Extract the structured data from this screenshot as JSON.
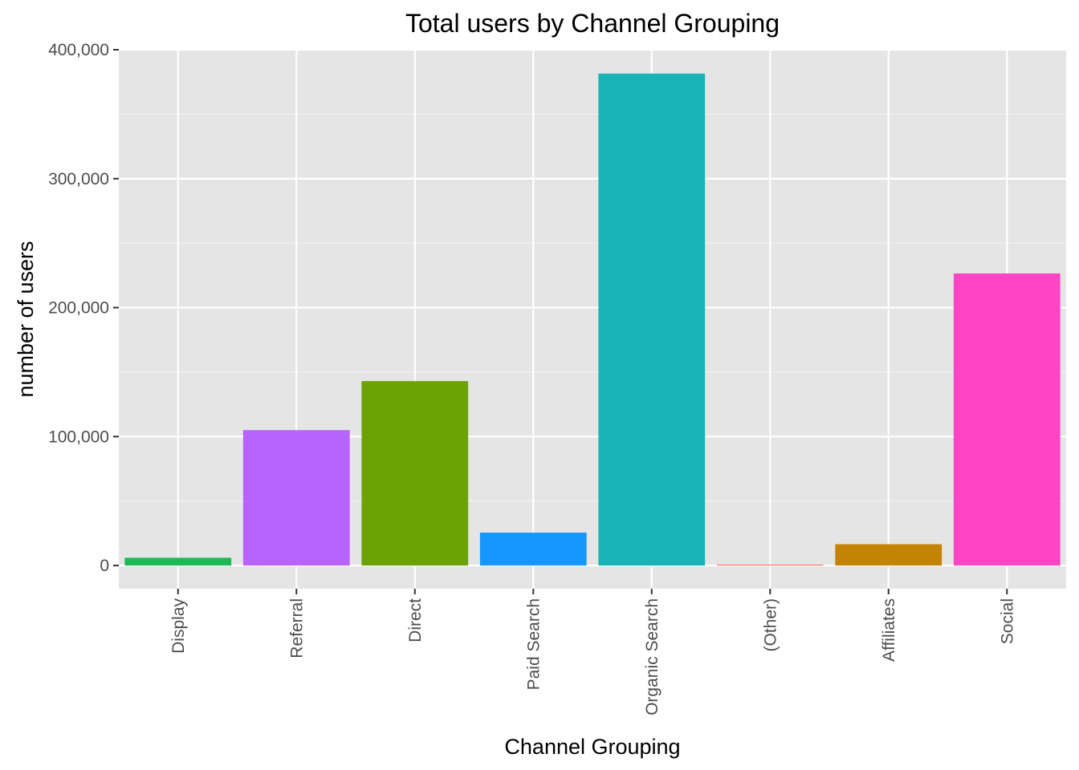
{
  "chart_data": {
    "type": "bar",
    "title": "Total users by Channel Grouping",
    "xlabel": "Channel Grouping",
    "ylabel": "number of users",
    "categories": [
      "Display",
      "Referral",
      "Direct",
      "Paid Search",
      "Organic Search",
      "(Other)",
      "Affiliates",
      "Social"
    ],
    "values": [
      6000,
      105000,
      143000,
      25500,
      381500,
      700,
      16500,
      226500
    ],
    "colors": [
      "#1DB954",
      "#B862FF",
      "#6BA304",
      "#1597FF",
      "#19B4B8",
      "#F8766D",
      "#C28402",
      "#FF44C6"
    ],
    "ylim": [
      -18000,
      400000
    ],
    "y_ticks": [
      0,
      100000,
      200000,
      300000,
      400000
    ],
    "y_tick_labels": [
      "0",
      "100,000",
      "200,000",
      "300,000",
      "400,000"
    ],
    "grid": true,
    "legend": "none"
  }
}
